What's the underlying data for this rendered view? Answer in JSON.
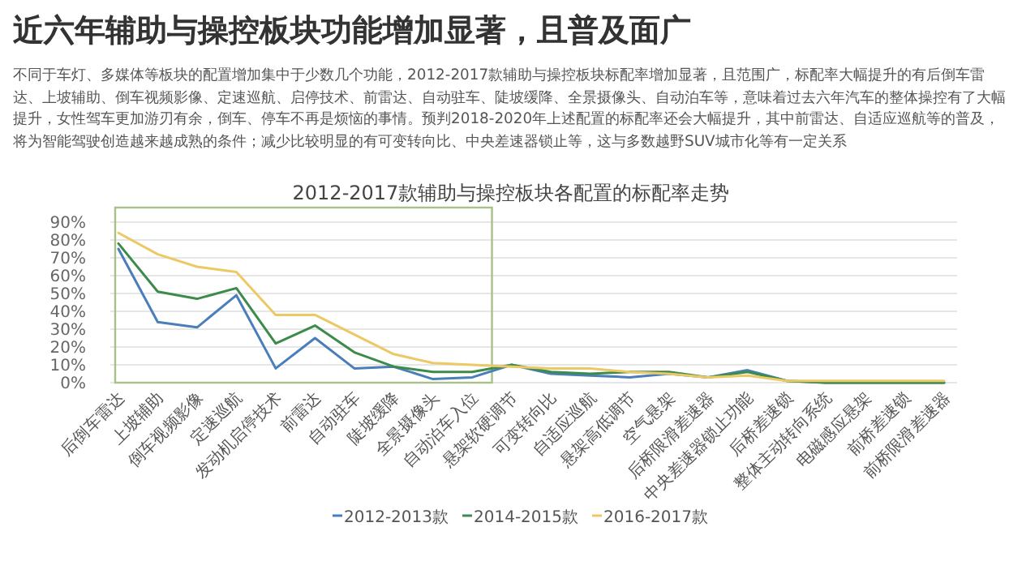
{
  "chart_data": {
    "type": "line",
    "title": "近六年辅助与操控板块功能增加显著，且普及面广",
    "subtitle": "不同于车灯、多媒体等板块的配置增加集中于少数几个功能，2012-2017款辅助与操控板块标配率增加显著，且范围广，标配率大幅提升的有后倒车雷达、上坡辅助、倒车视频影像、定速巡航、启停技术、前雷达、自动驻车、陡坡缓降、全景摄像头、自动泊车等，意味着过去六年汽车的整体操控有了大幅提升，女性驾车更加游刃有余，倒车、停车不再是烦恼的事情。预判2018-2020年上述配置的标配率还会大幅提升，其中前雷达、自适应巡航等的普及，将为智能驾驶创造越来越成熟的条件；减少比较明显的有可变转向比、中央差速器锁止等，这与多数越野SUV城市化等有一定关系",
    "annotations": [
      "2012-2017款辅助与操控板块各配置的标配率走势"
    ],
    "categories": [
      "后倒车雷达",
      "上坡辅助",
      "倒车视频影像",
      "定速巡航",
      "发动机启停技术",
      "前雷达",
      "自动驻车",
      "陡坡缓降",
      "全景摄像头",
      "自动泊车入位",
      "悬架软硬调节",
      "可变转向比",
      "自适应巡航",
      "悬架高低调节",
      "空气悬架",
      "后桥限滑差速器",
      "中央差速器锁止功能",
      "后桥差速锁",
      "整体主动转向系统",
      "电磁感应悬架",
      "前桥差速锁",
      "前桥限滑差速器"
    ],
    "series": [
      {
        "name": "2012-2013款",
        "color": "#4a7ebb",
        "values": [
          75,
          34,
          31,
          49,
          8,
          25,
          8,
          9,
          2,
          3,
          10,
          5,
          4,
          3,
          5,
          3,
          7,
          1,
          0,
          0,
          0,
          0
        ]
      },
      {
        "name": "2014-2015款",
        "color": "#3d8b4a",
        "values": [
          78,
          51,
          47,
          53,
          22,
          32,
          17,
          9,
          6,
          6,
          10,
          6,
          5,
          6,
          6,
          3,
          6,
          1,
          0,
          0,
          0,
          0
        ]
      },
      {
        "name": "2016-2017款",
        "color": "#ecc964",
        "values": [
          84,
          72,
          65,
          62,
          38,
          38,
          27,
          16,
          11,
          10,
          9,
          8,
          8,
          6,
          5,
          3,
          4,
          1,
          1,
          1,
          1,
          1
        ]
      }
    ],
    "ylim": [
      0,
      90
    ],
    "yticks": [
      {
        "value": 0,
        "label": "0%"
      },
      {
        "value": 10,
        "label": "10%"
      },
      {
        "value": 20,
        "label": "20%"
      },
      {
        "value": 30,
        "label": "30%"
      },
      {
        "value": 40,
        "label": "40%"
      },
      {
        "value": 50,
        "label": "50%"
      },
      {
        "value": 60,
        "label": "60%"
      },
      {
        "value": 70,
        "label": "70%"
      },
      {
        "value": 80,
        "label": "80%"
      },
      {
        "value": 90,
        "label": "90%"
      }
    ],
    "grid": "y",
    "legend": "bottom"
  }
}
